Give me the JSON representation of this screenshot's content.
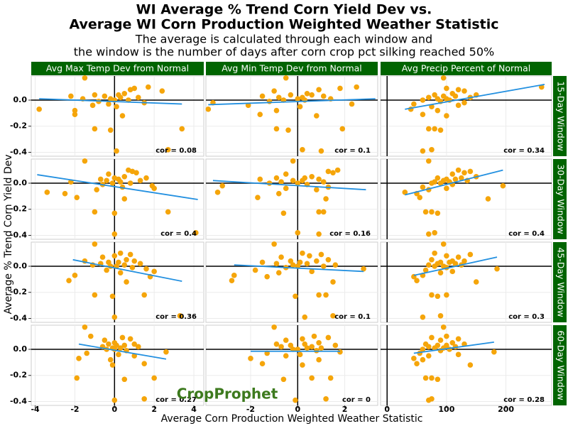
{
  "header": {
    "title_lines": [
      "WI Average % Trend Corn Yield Dev vs.",
      "Average WI Corn Production Weighted Weather Statistic"
    ],
    "subtitle_lines": [
      "The average is calculated through each window and",
      "the window is the number of days after corn crop pct silking reached 50%"
    ]
  },
  "column_titles": [
    "Avg Max Temp Dev from Normal",
    "Avg Min Temp Dev from Normal",
    "Avg Precip Percent of Normal"
  ],
  "row_titles": [
    "15-Day Window",
    "30-Day Window",
    "45-Day Window",
    "60-Day Window"
  ],
  "x_label": "Average Corn Production Weighted Weather Statistic",
  "y_label": "Average % Trend Corn Yield Dev",
  "logo": "CropProphet",
  "strip_color": "#006400",
  "chart_data": [
    {
      "type": "scatter",
      "annotation": "cor = 0.08",
      "color": "#f5a50a",
      "grid": true,
      "x": [
        -1.5,
        1.7,
        1.0,
        0.8,
        2.4,
        0.5,
        -1.0,
        0.2,
        -2.2,
        -0.5,
        0.3,
        1.2,
        -1.6,
        -0.2,
        0.0,
        0.7,
        -0.8,
        1.5,
        -0.3,
        -1.1,
        0.1,
        -3.8,
        -2.0,
        -2.0,
        0.4,
        -1.0,
        3.4,
        -0.2,
        2.7,
        0.1
      ],
      "y": [
        0.17,
        0.1,
        0.09,
        0.08,
        0.07,
        0.05,
        0.04,
        0.04,
        0.03,
        0.03,
        0.02,
        0.02,
        0.01,
        0.01,
        0.0,
        0.0,
        -0.01,
        -0.02,
        -0.03,
        -0.04,
        -0.05,
        -0.07,
        -0.08,
        -0.11,
        -0.12,
        -0.22,
        -0.22,
        -0.23,
        -0.38,
        -0.39
      ],
      "fit": {
        "x": [
          -3.8,
          3.4
        ],
        "y": [
          0.01,
          -0.03
        ],
        "color": "#2390e0"
      },
      "xlim": [
        -4.2,
        4.5
      ],
      "ylim": [
        -0.43,
        0.185
      ],
      "xticks": [
        -4,
        -2,
        0,
        2,
        4
      ],
      "yticks": [
        -0.4,
        -0.2,
        {
          "value": 0,
          "label": "0.0"
        }
      ]
    },
    {
      "type": "scatter",
      "annotation": "cor = 0.1",
      "color": "#f5a50a",
      "grid": true,
      "x": [
        -0.5,
        2.5,
        1.8,
        0.9,
        -1.0,
        0.4,
        -0.3,
        0.6,
        -1.5,
        1.1,
        0.2,
        -0.8,
        0.0,
        1.4,
        -0.6,
        0.3,
        -1.2,
        -3.6,
        2.3,
        -2.1,
        0.1,
        -3.8,
        -0.9,
        -1.6,
        0.8,
        -0.9,
        1.9,
        -0.4,
        0.2,
        1.0
      ],
      "y": [
        0.17,
        0.1,
        0.09,
        0.08,
        0.07,
        0.05,
        0.04,
        0.04,
        0.03,
        0.03,
        0.02,
        0.02,
        0.01,
        0.01,
        0.0,
        0.0,
        -0.01,
        -0.02,
        -0.03,
        -0.04,
        -0.05,
        -0.07,
        -0.08,
        -0.11,
        -0.12,
        -0.22,
        -0.22,
        -0.23,
        -0.38,
        -0.39
      ],
      "fit": {
        "x": [
          -3.8,
          3.3
        ],
        "y": [
          -0.035,
          0.01
        ],
        "color": "#2390e0"
      },
      "xlim": [
        -3.9,
        3.4
      ],
      "ylim": [
        -0.43,
        0.185
      ],
      "xticks": [
        -2,
        0,
        2
      ],
      "yticks": [
        -0.4,
        -0.2,
        {
          "value": 0,
          "label": "0.0"
        }
      ]
    },
    {
      "type": "scatter",
      "annotation": "cor = 0.34",
      "color": "#f5a50a",
      "grid": true,
      "x": [
        95,
        260,
        100,
        120,
        130,
        110,
        80,
        150,
        95,
        115,
        140,
        70,
        100,
        85,
        105,
        60,
        90,
        130,
        45,
        120,
        75,
        40,
        85,
        60,
        100,
        70,
        80,
        90,
        75,
        60
      ],
      "y": [
        0.17,
        0.1,
        0.09,
        0.08,
        0.07,
        0.05,
        0.04,
        0.04,
        0.03,
        0.03,
        0.02,
        0.02,
        0.01,
        0.01,
        0.0,
        0.0,
        -0.01,
        -0.02,
        -0.03,
        -0.04,
        -0.05,
        -0.07,
        -0.08,
        -0.11,
        -0.12,
        -0.22,
        -0.22,
        -0.23,
        -0.38,
        -0.39
      ],
      "fit": {
        "x": [
          30,
          265
        ],
        "y": [
          -0.07,
          0.12
        ],
        "color": "#2390e0"
      },
      "xlim": [
        -11,
        277
      ],
      "ylim": [
        -0.43,
        0.185
      ],
      "xticks": [
        0,
        100,
        200
      ],
      "yticks": [
        -0.4,
        -0.2,
        {
          "value": 0,
          "label": "0.0"
        }
      ]
    },
    {
      "type": "scatter",
      "annotation": "cor = 0.4",
      "color": "#f5a50a",
      "grid": true,
      "x": [
        -1.5,
        0.7,
        0.9,
        1.1,
        -0.3,
        0.5,
        0.0,
        1.6,
        -0.7,
        0.2,
        1.3,
        -0.4,
        0.3,
        -2.2,
        0.8,
        -0.1,
        -0.6,
        1.9,
        0.4,
        2.0,
        -0.9,
        -3.4,
        -2.5,
        -1.9,
        0.5,
        -1.0,
        2.7,
        0.0,
        4.1,
        0.0
      ],
      "y": [
        0.17,
        0.1,
        0.09,
        0.08,
        0.07,
        0.05,
        0.04,
        0.04,
        0.03,
        0.03,
        0.02,
        0.02,
        0.01,
        0.01,
        0.0,
        0.0,
        -0.01,
        -0.02,
        -0.03,
        -0.04,
        -0.05,
        -0.07,
        -0.08,
        -0.11,
        -0.12,
        -0.22,
        -0.22,
        -0.23,
        -0.38,
        -0.39
      ],
      "fit": {
        "x": [
          -3.9,
          4.2
        ],
        "y": [
          0.065,
          -0.125
        ],
        "color": "#2390e0"
      },
      "xlim": [
        -4.2,
        4.5
      ],
      "ylim": [
        -0.43,
        0.185
      ],
      "xticks": [
        -4,
        -2,
        0,
        2,
        4
      ],
      "yticks": [
        -0.4,
        -0.2,
        {
          "value": 0,
          "label": "0.0"
        }
      ]
    },
    {
      "type": "scatter",
      "annotation": "cor = 0.16",
      "color": "#f5a50a",
      "grid": true,
      "x": [
        -0.2,
        1.7,
        1.3,
        1.5,
        -0.5,
        0.6,
        -0.9,
        0.3,
        -1.6,
        0.9,
        -0.2,
        0.2,
        -0.7,
        1.1,
        0.0,
        -1.2,
        0.4,
        -3.2,
        1.3,
        -0.5,
        0.8,
        -3.4,
        -0.8,
        -1.7,
        1.2,
        0.9,
        1.1,
        -0.6,
        0.0,
        0.9
      ],
      "y": [
        0.17,
        0.1,
        0.09,
        0.08,
        0.07,
        0.05,
        0.04,
        0.04,
        0.03,
        0.03,
        0.02,
        0.02,
        0.01,
        0.01,
        0.0,
        0.0,
        -0.01,
        -0.02,
        -0.03,
        -0.04,
        -0.05,
        -0.07,
        -0.08,
        -0.11,
        -0.12,
        -0.22,
        -0.22,
        -0.23,
        -0.38,
        -0.39
      ],
      "fit": {
        "x": [
          -3.6,
          2.9
        ],
        "y": [
          0.02,
          -0.05
        ],
        "color": "#2390e0"
      },
      "xlim": [
        -3.9,
        3.4
      ],
      "ylim": [
        -0.43,
        0.185
      ],
      "xticks": [
        -2,
        0,
        2
      ],
      "yticks": [
        -0.4,
        -0.2,
        {
          "value": 0,
          "label": "0.0"
        }
      ]
    },
    {
      "type": "scatter",
      "annotation": "cor = 0.4",
      "color": "#f5a50a",
      "grid": true,
      "x": [
        70,
        120,
        140,
        130,
        110,
        150,
        85,
        125,
        100,
        115,
        95,
        135,
        80,
        105,
        75,
        90,
        110,
        195,
        60,
        100,
        70,
        30,
        50,
        55,
        170,
        65,
        75,
        85,
        80,
        70
      ],
      "y": [
        0.17,
        0.1,
        0.09,
        0.08,
        0.07,
        0.05,
        0.04,
        0.04,
        0.03,
        0.03,
        0.02,
        0.02,
        0.01,
        0.01,
        0.0,
        0.0,
        -0.01,
        -0.02,
        -0.03,
        -0.04,
        -0.05,
        -0.07,
        -0.08,
        -0.11,
        -0.12,
        -0.22,
        -0.22,
        -0.23,
        -0.38,
        -0.39
      ],
      "fit": {
        "x": [
          30,
          195
        ],
        "y": [
          -0.09,
          0.1
        ],
        "color": "#2390e0"
      },
      "xlim": [
        -11,
        277
      ],
      "ylim": [
        -0.43,
        0.185
      ],
      "xticks": [
        0,
        100,
        200
      ],
      "yticks": [
        -0.4,
        -0.2,
        {
          "value": 0,
          "label": "0.0"
        }
      ]
    },
    {
      "type": "scatter",
      "annotation": "cor = 0.36",
      "color": "#f5a50a",
      "grid": true,
      "x": [
        -1.0,
        0.3,
        0.8,
        0.0,
        -0.6,
        0.6,
        -1.5,
        1.0,
        0.2,
        -0.3,
        1.3,
        -0.7,
        0.5,
        -1.1,
        0.1,
        -0.2,
        0.9,
        1.6,
        -0.4,
        2.0,
        0.3,
        -2.0,
        1.8,
        -2.3,
        0.6,
        -1.0,
        1.5,
        -0.1,
        3.3,
        0.0
      ],
      "y": [
        0.17,
        0.1,
        0.09,
        0.08,
        0.07,
        0.05,
        0.04,
        0.04,
        0.03,
        0.03,
        0.02,
        0.02,
        0.01,
        0.01,
        0.0,
        0.0,
        -0.01,
        -0.02,
        -0.03,
        -0.04,
        -0.05,
        -0.07,
        -0.08,
        -0.11,
        -0.12,
        -0.22,
        -0.22,
        -0.23,
        -0.38,
        -0.39
      ],
      "fit": {
        "x": [
          -2.1,
          3.4
        ],
        "y": [
          0.05,
          -0.115
        ],
        "color": "#2390e0"
      },
      "xlim": [
        -4.2,
        4.5
      ],
      "ylim": [
        -0.43,
        0.185
      ],
      "xticks": [
        -4,
        -2,
        0,
        2,
        4
      ],
      "yticks": [
        -0.4,
        -0.2,
        {
          "value": 0,
          "label": "0.0"
        }
      ]
    },
    {
      "type": "scatter",
      "annotation": "cor = 0.1",
      "color": "#f5a50a",
      "grid": true,
      "x": [
        -1.0,
        0.2,
        1.0,
        0.5,
        -0.7,
        1.3,
        -0.3,
        0.8,
        -1.5,
        0.1,
        0.4,
        -0.9,
        1.6,
        -0.2,
        0.0,
        1.1,
        -0.5,
        2.8,
        -1.8,
        0.6,
        -0.8,
        -2.7,
        -1.3,
        -2.8,
        1.5,
        0.9,
        1.2,
        -0.1,
        1.5,
        0.3
      ],
      "y": [
        0.17,
        0.1,
        0.09,
        0.08,
        0.07,
        0.05,
        0.04,
        0.04,
        0.03,
        0.03,
        0.02,
        0.02,
        0.01,
        0.01,
        0.0,
        0.0,
        -0.01,
        -0.02,
        -0.03,
        -0.04,
        -0.05,
        -0.07,
        -0.08,
        -0.11,
        -0.12,
        -0.22,
        -0.22,
        -0.23,
        -0.38,
        -0.39
      ],
      "fit": {
        "x": [
          -2.7,
          2.8
        ],
        "y": [
          0.01,
          -0.04
        ],
        "color": "#2390e0"
      },
      "xlim": [
        -3.9,
        3.4
      ],
      "ylim": [
        -0.43,
        0.185
      ],
      "xticks": [
        -2,
        0,
        2
      ],
      "yticks": [
        -0.4,
        -0.2,
        {
          "value": 0,
          "label": "0.0"
        }
      ]
    },
    {
      "type": "scatter",
      "annotation": "cor = 0.3",
      "color": "#f5a50a",
      "grid": true,
      "x": [
        95,
        80,
        140,
        100,
        120,
        75,
        110,
        130,
        90,
        105,
        85,
        115,
        70,
        125,
        95,
        80,
        100,
        185,
        65,
        110,
        90,
        60,
        45,
        50,
        150,
        75,
        100,
        85,
        90,
        60
      ],
      "y": [
        0.17,
        0.1,
        0.09,
        0.08,
        0.07,
        0.05,
        0.04,
        0.04,
        0.03,
        0.03,
        0.02,
        0.02,
        0.01,
        0.01,
        0.0,
        0.0,
        -0.01,
        -0.02,
        -0.03,
        -0.04,
        -0.05,
        -0.07,
        -0.08,
        -0.11,
        -0.12,
        -0.22,
        -0.22,
        -0.23,
        -0.38,
        -0.39
      ],
      "fit": {
        "x": [
          45,
          185
        ],
        "y": [
          -0.07,
          0.07
        ],
        "color": "#2390e0"
      },
      "xlim": [
        -11,
        277
      ],
      "ylim": [
        -0.43,
        0.185
      ],
      "xticks": [
        0,
        100,
        200
      ],
      "yticks": [
        -0.4,
        -0.2,
        {
          "value": 0,
          "label": "0.0"
        }
      ]
    },
    {
      "type": "scatter",
      "annotation": "cor = 0.27",
      "color": "#f5a50a",
      "grid": true,
      "x": [
        -1.5,
        -1.2,
        0.4,
        0.8,
        -0.5,
        0.0,
        1.0,
        -0.3,
        0.5,
        0.1,
        -0.6,
        1.2,
        -0.1,
        0.3,
        0.0,
        -0.4,
        0.6,
        2.6,
        -1.4,
        0.2,
        1.0,
        -1.8,
        -0.2,
        1.5,
        -0.1,
        -1.9,
        2.0,
        0.5,
        1.5,
        0.0
      ],
      "y": [
        0.17,
        0.1,
        0.09,
        0.08,
        0.07,
        0.05,
        0.04,
        0.04,
        0.03,
        0.03,
        0.02,
        0.02,
        0.01,
        0.01,
        0.0,
        0.0,
        -0.01,
        -0.02,
        -0.03,
        -0.04,
        -0.05,
        -0.07,
        -0.08,
        -0.11,
        -0.12,
        -0.22,
        -0.22,
        -0.23,
        -0.38,
        -0.39
      ],
      "fit": {
        "x": [
          -1.8,
          2.6
        ],
        "y": [
          0.04,
          -0.075
        ],
        "color": "#2390e0"
      },
      "xlim": [
        -4.2,
        4.5
      ],
      "ylim": [
        -0.43,
        0.185
      ],
      "xticks": [
        -4,
        -2,
        0,
        2,
        4
      ],
      "yticks": [
        -0.4,
        -0.2,
        {
          "value": 0,
          "label": "0.0"
        }
      ]
    },
    {
      "type": "scatter",
      "annotation": "cor = 0",
      "color": "#f5a50a",
      "grid": true,
      "x": [
        -1.0,
        0.7,
        1.3,
        0.2,
        -0.5,
        0.9,
        -0.9,
        0.3,
        1.6,
        -0.3,
        0.6,
        -0.7,
        0.4,
        1.0,
        0.0,
        -0.2,
        0.8,
        1.8,
        -1.3,
        0.1,
        -0.5,
        -2.0,
        0.9,
        -1.5,
        0.2,
        0.6,
        1.4,
        -0.6,
        1.2,
        -0.1
      ],
      "y": [
        0.17,
        0.1,
        0.09,
        0.08,
        0.07,
        0.05,
        0.04,
        0.04,
        0.03,
        0.03,
        0.02,
        0.02,
        0.01,
        0.01,
        0.0,
        0.0,
        -0.01,
        -0.02,
        -0.03,
        -0.04,
        -0.05,
        -0.07,
        -0.08,
        -0.11,
        -0.12,
        -0.22,
        -0.22,
        -0.23,
        -0.38,
        -0.39
      ],
      "fit": {
        "x": [
          -2.0,
          1.8
        ],
        "y": [
          -0.015,
          -0.015
        ],
        "color": "#2390e0"
      },
      "xlim": [
        -3.9,
        3.4
      ],
      "ylim": [
        -0.43,
        0.185
      ],
      "xticks": [
        -2,
        0,
        2
      ],
      "yticks": [
        -0.4,
        -0.2,
        {
          "value": 0,
          "label": "0.0"
        }
      ]
    },
    {
      "type": "scatter",
      "annotation": "cor = 0.28",
      "color": "#f5a50a",
      "grid": true,
      "x": [
        95,
        100,
        75,
        120,
        90,
        110,
        65,
        130,
        85,
        100,
        70,
        115,
        95,
        80,
        105,
        60,
        90,
        180,
        55,
        120,
        70,
        45,
        60,
        50,
        140,
        65,
        75,
        85,
        75,
        70
      ],
      "y": [
        0.17,
        0.1,
        0.09,
        0.08,
        0.07,
        0.05,
        0.04,
        0.04,
        0.03,
        0.03,
        0.02,
        0.02,
        0.01,
        0.01,
        0.0,
        0.0,
        -0.01,
        -0.02,
        -0.03,
        -0.04,
        -0.05,
        -0.07,
        -0.08,
        -0.11,
        -0.12,
        -0.22,
        -0.22,
        -0.23,
        -0.38,
        -0.39
      ],
      "fit": {
        "x": [
          45,
          180
        ],
        "y": [
          -0.03,
          0.055
        ],
        "color": "#2390e0"
      },
      "xlim": [
        -11,
        277
      ],
      "ylim": [
        -0.43,
        0.185
      ],
      "xticks": [
        0,
        100,
        200
      ],
      "yticks": [
        -0.4,
        -0.2,
        {
          "value": 0,
          "label": "0.0"
        }
      ]
    }
  ]
}
